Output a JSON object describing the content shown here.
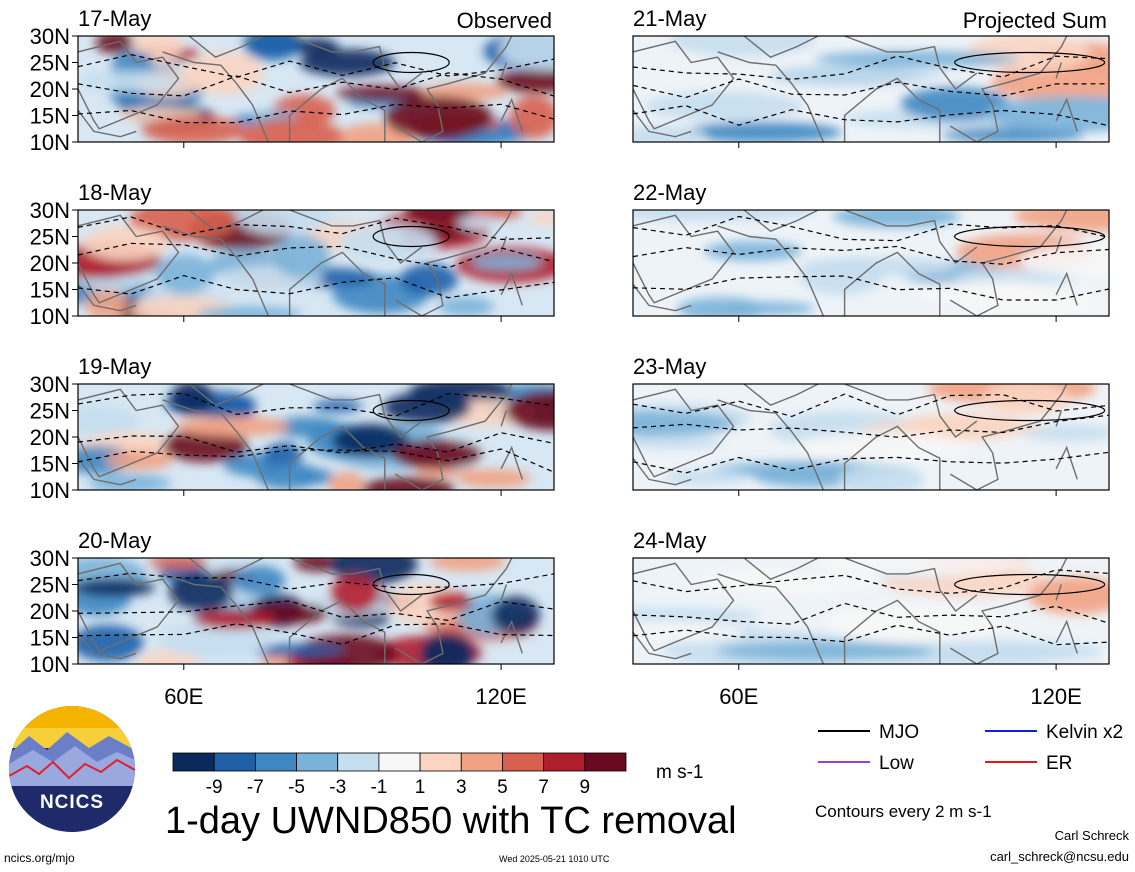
{
  "footer": {
    "title": "1-day UWND850 with TC removal",
    "unit": "m s-1",
    "url": "ncics.org/mjo",
    "timestamp": "Wed 2025-05-21 1010 UTC",
    "contour_note": "Contours every 2 m s-1",
    "author": "Carl Schreck",
    "email": "carl_schreck@ncsu.edu",
    "logo_text": "NCICS"
  },
  "chart_data": [
    {
      "type": "heatmap",
      "title": "Observed",
      "panel_dates": [
        "17-May",
        "18-May",
        "19-May",
        "20-May"
      ],
      "y_tick_labels": [
        "30N",
        "25N",
        "20N",
        "15N",
        "10N"
      ],
      "x_tick_labels": [
        "60E",
        "120E"
      ],
      "xlim": [
        40,
        130
      ],
      "ylim": [
        10,
        30
      ],
      "color_scale": [
        -9,
        -7,
        -5,
        -3,
        -1,
        1,
        3,
        5,
        7,
        9
      ]
    },
    {
      "type": "heatmap",
      "title": "Projected Sum",
      "panel_dates": [
        "21-May",
        "22-May",
        "23-May",
        "24-May"
      ],
      "y_tick_labels": [],
      "x_tick_labels": [
        "60E",
        "120E"
      ],
      "xlim": [
        40,
        130
      ],
      "ylim": [
        10,
        30
      ],
      "color_scale": [
        -9,
        -7,
        -5,
        -3,
        -1,
        1,
        3,
        5,
        7,
        9
      ]
    }
  ],
  "colorbar": {
    "colors": [
      "#0a2a5e",
      "#1f5fa8",
      "#3e87c2",
      "#7ab3d9",
      "#c5def0",
      "#f7f7f7",
      "#fbd5c2",
      "#f2a284",
      "#d8604f",
      "#b01d2d",
      "#6b0a1e"
    ],
    "tick_labels": [
      "-9",
      "-7",
      "-5",
      "-3",
      "-1",
      "1",
      "3",
      "5",
      "7",
      "9"
    ]
  },
  "legend": [
    {
      "name": "MJO",
      "color": "#000000"
    },
    {
      "name": "Kelvin x2",
      "color": "#1020e0"
    },
    {
      "name": "Low",
      "color": "#9b3fd9"
    },
    {
      "name": "ER",
      "color": "#e01818"
    }
  ]
}
